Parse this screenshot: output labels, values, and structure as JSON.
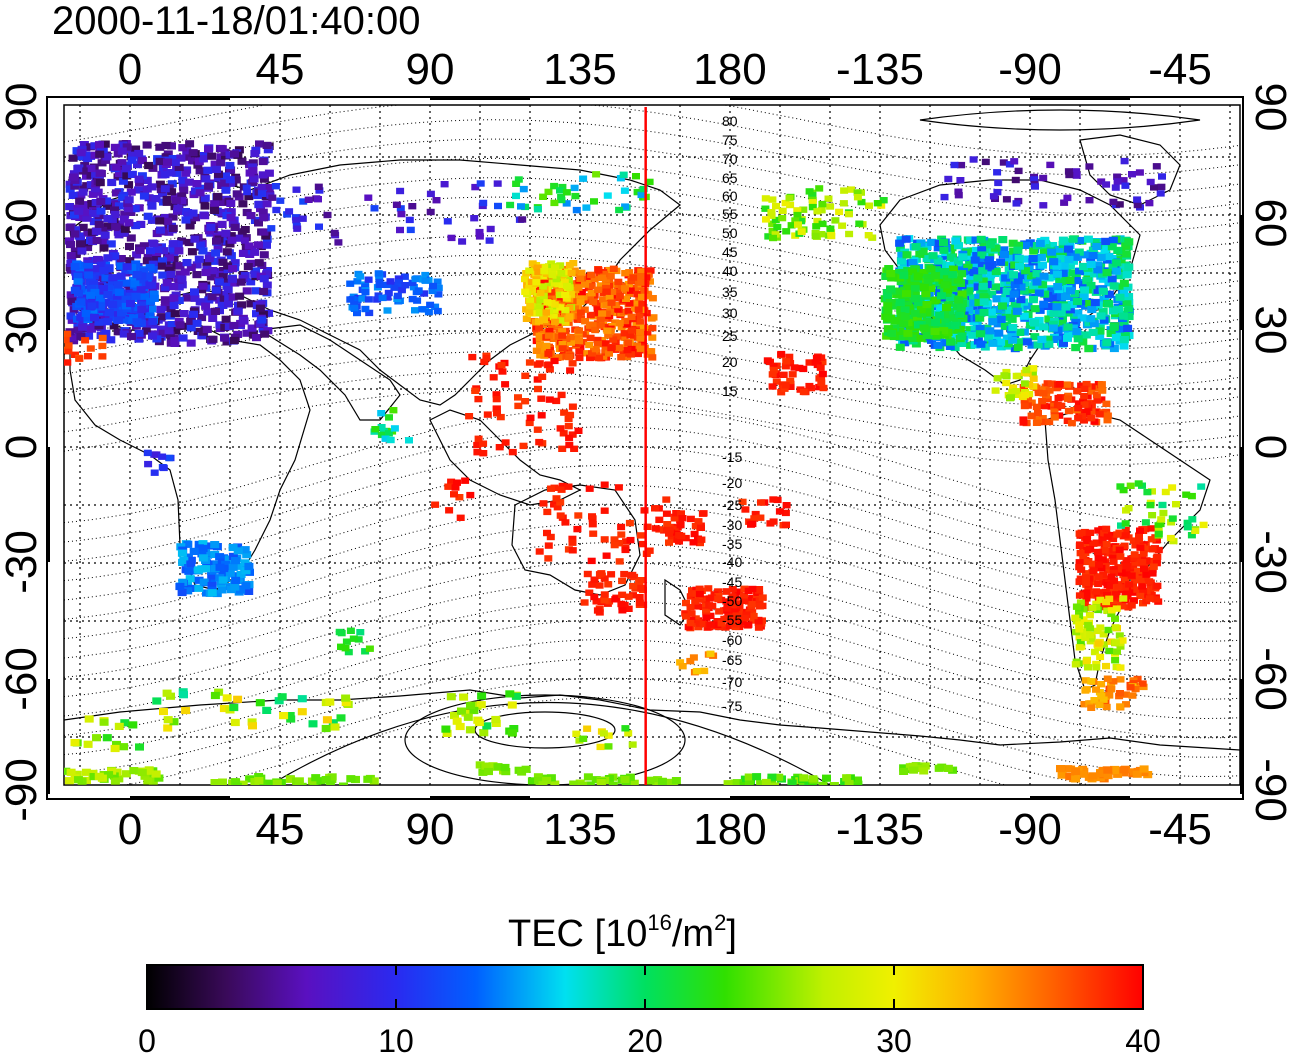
{
  "title": "2000-11-18/01:40:00",
  "map": {
    "top_lon_labels": [
      "0",
      "45",
      "90",
      "135",
      "180",
      "-135",
      "-90",
      "-45"
    ],
    "bottom_lon_labels": [
      "0",
      "45",
      "90",
      "135",
      "180",
      "-135",
      "-90",
      "-45"
    ],
    "left_lat_labels": [
      "90",
      "60",
      "30",
      "0",
      "-30",
      "-60",
      "-90"
    ],
    "right_lat_labels": [
      "90",
      "60",
      "30",
      "0",
      "-30",
      "-60",
      "-90"
    ],
    "contour_labels": [
      "80",
      "75",
      "70",
      "65",
      "60",
      "55",
      "50",
      "45",
      "40",
      "35",
      "30",
      "25",
      "20",
      "15",
      "-15",
      "-20",
      "-25",
      "-30",
      "-35",
      "-40",
      "-45",
      "-50",
      "-55",
      "-60",
      "-65",
      "-70",
      "-75"
    ],
    "red_line_longitude": 155
  },
  "colorbar": {
    "title_main": "TEC  [10",
    "title_exp1": "16",
    "title_mid": "/m",
    "title_exp2": "2",
    "title_end": "]",
    "ticks": [
      "0",
      "10",
      "20",
      "30",
      "40"
    ],
    "min": 0,
    "max": 40
  },
  "colors": {
    "red_line": "#ff0000",
    "colorbar_stops": [
      "#000000",
      "#3a0a5a",
      "#5a10c0",
      "#2a2af0",
      "#0060ff",
      "#00e0f0",
      "#00e060",
      "#30e000",
      "#c0f000",
      "#f0f000",
      "#ffb000",
      "#ff6000",
      "#ff0000"
    ]
  },
  "tec_regions": [
    {
      "name": "europe",
      "value": 6
    },
    {
      "name": "east-asia",
      "value": 40
    },
    {
      "name": "north-america",
      "value": 16
    },
    {
      "name": "south-america",
      "value": 40
    },
    {
      "name": "australia",
      "value": 40
    },
    {
      "name": "southern-africa",
      "value": 14
    },
    {
      "name": "antarctica",
      "value": 24
    }
  ]
}
